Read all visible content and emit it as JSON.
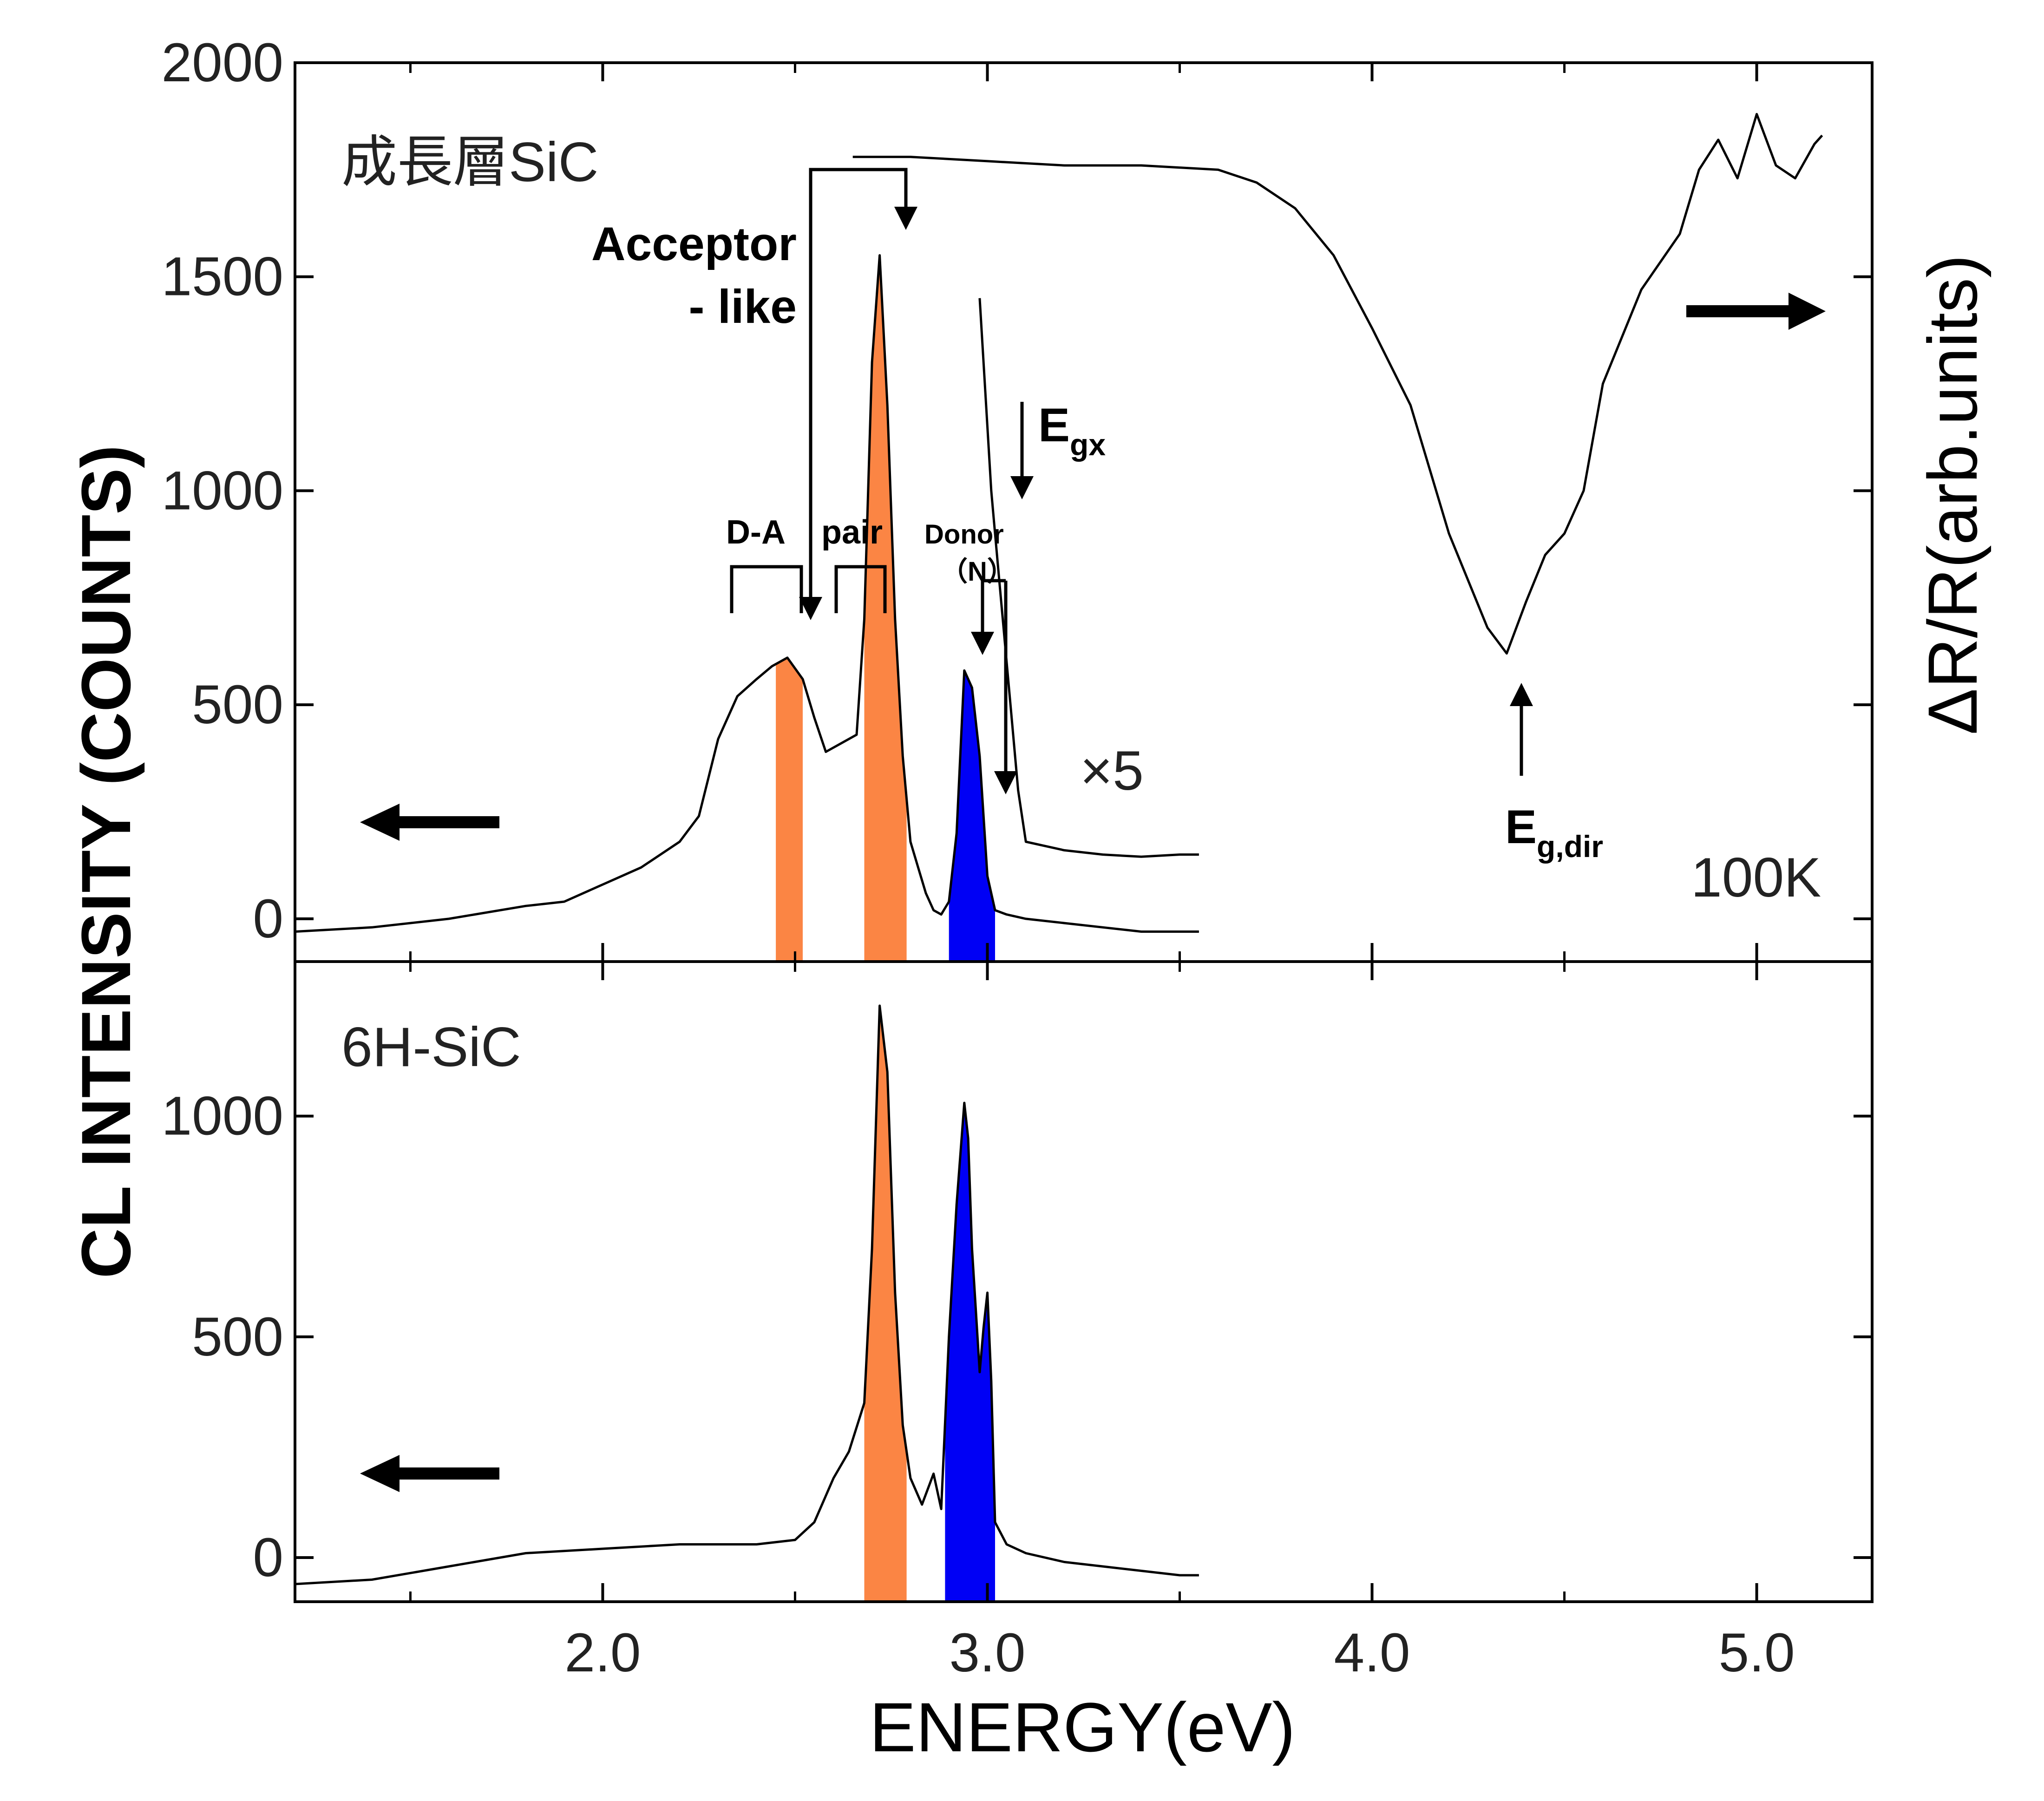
{
  "chart_data": [
    {
      "panel": "top",
      "type": "line",
      "sample_label": "成長層SiC",
      "temperature_label": "100K",
      "xlabel": "ENERGY(eV)",
      "ylabel": "CL INTENSITY (COUNTS)",
      "y2label": "ΔR/R(arb.units)",
      "xlim": [
        1.2,
        5.3
      ],
      "ylim": [
        -100,
        2000
      ],
      "x_ticks": [
        "2.0",
        "3.0",
        "4.0",
        "5.0"
      ],
      "y_ticks": [
        "0",
        "500",
        "1000",
        "1500",
        "2000"
      ],
      "grid": false,
      "series": [
        {
          "role": "CL spectrum",
          "x": [
            1.2,
            1.4,
            1.6,
            1.8,
            1.9,
            2.0,
            2.1,
            2.2,
            2.25,
            2.3,
            2.35,
            2.4,
            2.44,
            2.48,
            2.52,
            2.55,
            2.58,
            2.62,
            2.66,
            2.68,
            2.7,
            2.72,
            2.74,
            2.76,
            2.78,
            2.8,
            2.82,
            2.84,
            2.86,
            2.88,
            2.9,
            2.92,
            2.94,
            2.96,
            2.98,
            3.0,
            3.02,
            3.05,
            3.1,
            3.2,
            3.3,
            3.4,
            3.5,
            3.55
          ],
          "y": [
            -30,
            -20,
            0,
            30,
            40,
            80,
            120,
            180,
            240,
            420,
            520,
            560,
            590,
            610,
            560,
            470,
            390,
            410,
            430,
            700,
            1300,
            1550,
            1200,
            700,
            380,
            180,
            120,
            60,
            20,
            10,
            40,
            200,
            580,
            540,
            380,
            100,
            20,
            10,
            0,
            -10,
            -20,
            -30,
            -30,
            -30
          ]
        },
        {
          "role": "CL spectrum ×5",
          "x": [
            2.98,
            3.0,
            3.01,
            3.02,
            3.04,
            3.06,
            3.08,
            3.1,
            3.15,
            3.2,
            3.3,
            3.4,
            3.5,
            3.55
          ],
          "y": [
            1450,
            1150,
            1000,
            900,
            700,
            500,
            300,
            180,
            170,
            160,
            150,
            145,
            150,
            150
          ]
        },
        {
          "role": "ΔR/R spectrum",
          "x": [
            2.65,
            2.8,
            3.0,
            3.2,
            3.4,
            3.6,
            3.7,
            3.8,
            3.9,
            4.0,
            4.1,
            4.2,
            4.3,
            4.35,
            4.4,
            4.45,
            4.5,
            4.55,
            4.6,
            4.7,
            4.8,
            4.85,
            4.9,
            4.95,
            5.0,
            5.05,
            5.1,
            5.15,
            5.17
          ],
          "y": [
            1780,
            1780,
            1770,
            1760,
            1760,
            1750,
            1720,
            1660,
            1550,
            1380,
            1200,
            900,
            680,
            620,
            740,
            850,
            900,
            1000,
            1250,
            1470,
            1600,
            1750,
            1820,
            1730,
            1880,
            1760,
            1730,
            1810,
            1830
          ]
        }
      ],
      "highlighted_bands": [
        {
          "x": [
            2.45,
            2.52
          ],
          "color": "#fb8544"
        },
        {
          "x": [
            2.68,
            2.79
          ],
          "color": "#fb8544"
        },
        {
          "x": [
            2.9,
            3.02
          ],
          "color": "#0000f5"
        }
      ],
      "annotations": {
        "acceptor_line1": "Acceptor",
        "acceptor_line2": "- like",
        "da": "D-A",
        "pair": "pair",
        "donor": "Donor",
        "donor_n": "（N）",
        "egx_main": "E",
        "egx_sub": "gx",
        "egdir_main": "E",
        "egdir_sub": "g,dir",
        "x5": "×5"
      }
    },
    {
      "panel": "bottom",
      "type": "line",
      "sample_label": "6H-SiC",
      "xlabel": "ENERGY(eV)",
      "xlim": [
        1.2,
        5.3
      ],
      "ylim": [
        -100,
        1350
      ],
      "x_ticks": [
        "2.0",
        "3.0",
        "4.0",
        "5.0"
      ],
      "y_ticks": [
        "0",
        "500",
        "1000"
      ],
      "grid": false,
      "series": [
        {
          "role": "CL spectrum",
          "x": [
            1.2,
            1.4,
            1.6,
            1.8,
            2.0,
            2.2,
            2.4,
            2.5,
            2.55,
            2.6,
            2.64,
            2.68,
            2.7,
            2.72,
            2.74,
            2.76,
            2.78,
            2.8,
            2.83,
            2.86,
            2.88,
            2.9,
            2.92,
            2.94,
            2.95,
            2.96,
            2.98,
            2.99,
            3.0,
            3.01,
            3.02,
            3.05,
            3.1,
            3.2,
            3.3,
            3.4,
            3.5,
            3.55
          ],
          "y": [
            -60,
            -50,
            -20,
            10,
            20,
            30,
            30,
            40,
            80,
            180,
            240,
            350,
            700,
            1250,
            1100,
            600,
            300,
            180,
            120,
            190,
            110,
            500,
            800,
            1030,
            950,
            700,
            420,
            520,
            600,
            400,
            80,
            30,
            10,
            -10,
            -20,
            -30,
            -40,
            -40
          ]
        }
      ],
      "highlighted_bands": [
        {
          "x": [
            2.68,
            2.79
          ],
          "color": "#fb8544"
        },
        {
          "x": [
            2.89,
            3.02
          ],
          "color": "#0000f5"
        }
      ]
    }
  ]
}
